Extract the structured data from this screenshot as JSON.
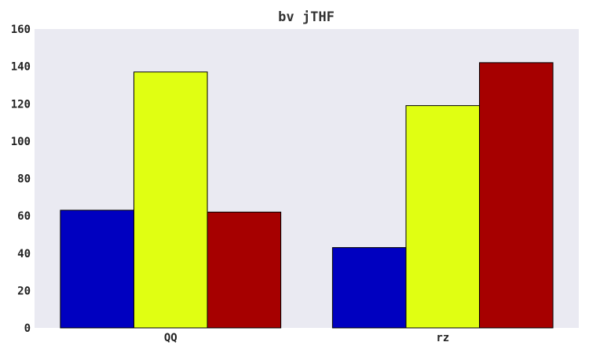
{
  "chart_data": {
    "type": "bar",
    "title": "bv jTHF",
    "xlabel": "",
    "ylabel": "",
    "categories": [
      "QQ",
      "rz"
    ],
    "series": [
      {
        "values": [
          63,
          43
        ],
        "color": "#0000c0"
      },
      {
        "values": [
          137,
          119
        ],
        "color": "#e0ff12"
      },
      {
        "values": [
          62,
          142
        ],
        "color": "#a60000"
      }
    ],
    "ylim": [
      0,
      160
    ],
    "yticks": [
      0,
      20,
      40,
      60,
      80,
      100,
      120,
      140,
      160
    ],
    "ytick_labels": [
      "0",
      "20",
      "40",
      "60",
      "80",
      "100",
      "120",
      "140",
      "160"
    ],
    "grid": false,
    "legend": "none",
    "plot_background": "#eaeaf2"
  }
}
